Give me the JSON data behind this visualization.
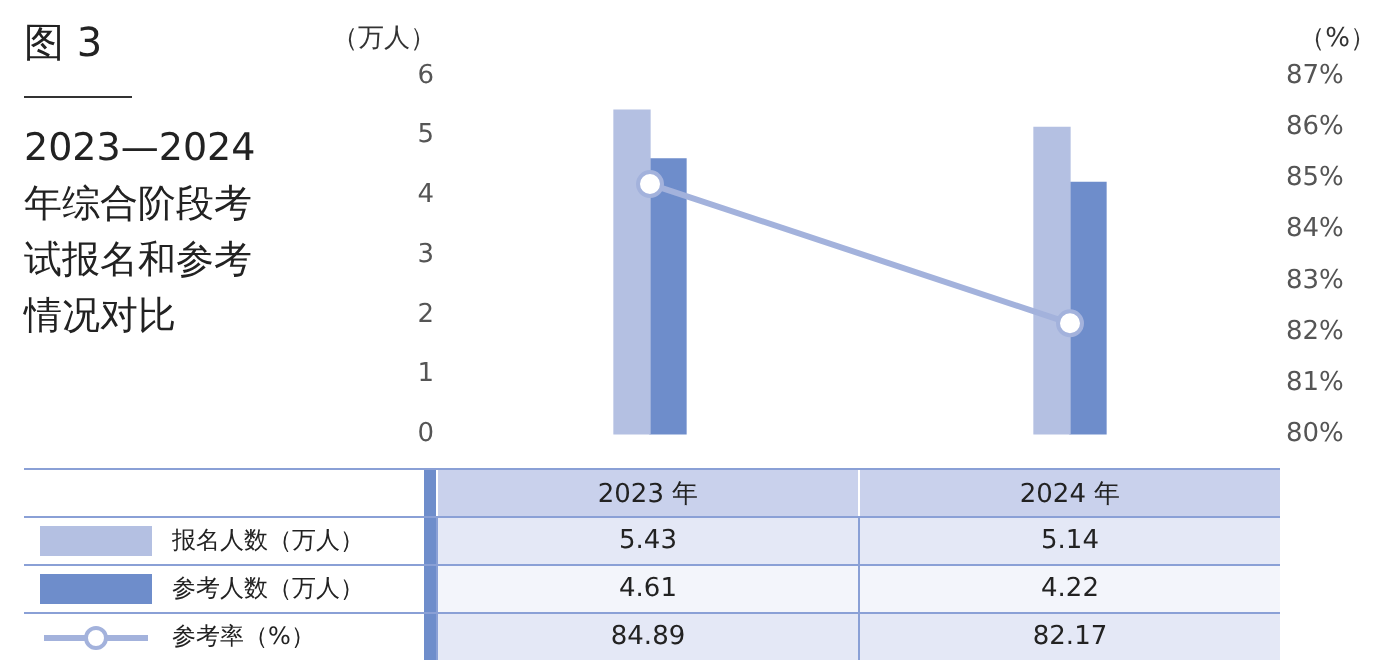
{
  "chart_data": {
    "type": "bar",
    "title": "2023—2024年综合阶段考试报名和参考情况对比",
    "annotations": [
      "图 3"
    ],
    "ylabel": "（万人）",
    "y2label": "（%）",
    "categories": [
      "2023 年",
      "2024 年"
    ],
    "series": [
      {
        "name": "报名人数（万人）",
        "color": "#b4c0e2",
        "values": [
          5.43,
          5.14
        ]
      },
      {
        "name": "参考人数（万人）",
        "color": "#6e8dcb",
        "values": [
          4.61,
          4.22
        ]
      },
      {
        "name": "参考率（%）",
        "type": "line",
        "axis": "y2",
        "color": "#a3b2dc",
        "marker": "circle",
        "values": [
          84.89,
          82.17
        ]
      }
    ],
    "ylim": [
      0,
      6
    ],
    "yticks": [
      0,
      1,
      2,
      3,
      4,
      5,
      6
    ],
    "y2lim": [
      80,
      87
    ],
    "y2ticks": [
      {
        "value": 80,
        "label": "80%"
      },
      {
        "value": 81,
        "label": "81%"
      },
      {
        "value": 82,
        "label": "82%"
      },
      {
        "value": 83,
        "label": "83%"
      },
      {
        "value": 84,
        "label": "84%"
      },
      {
        "value": 85,
        "label": "85%"
      },
      {
        "value": 86,
        "label": "86%"
      },
      {
        "value": 87,
        "label": "87%"
      }
    ],
    "grid": false,
    "legend": "bottom",
    "data_labels": true
  }
}
